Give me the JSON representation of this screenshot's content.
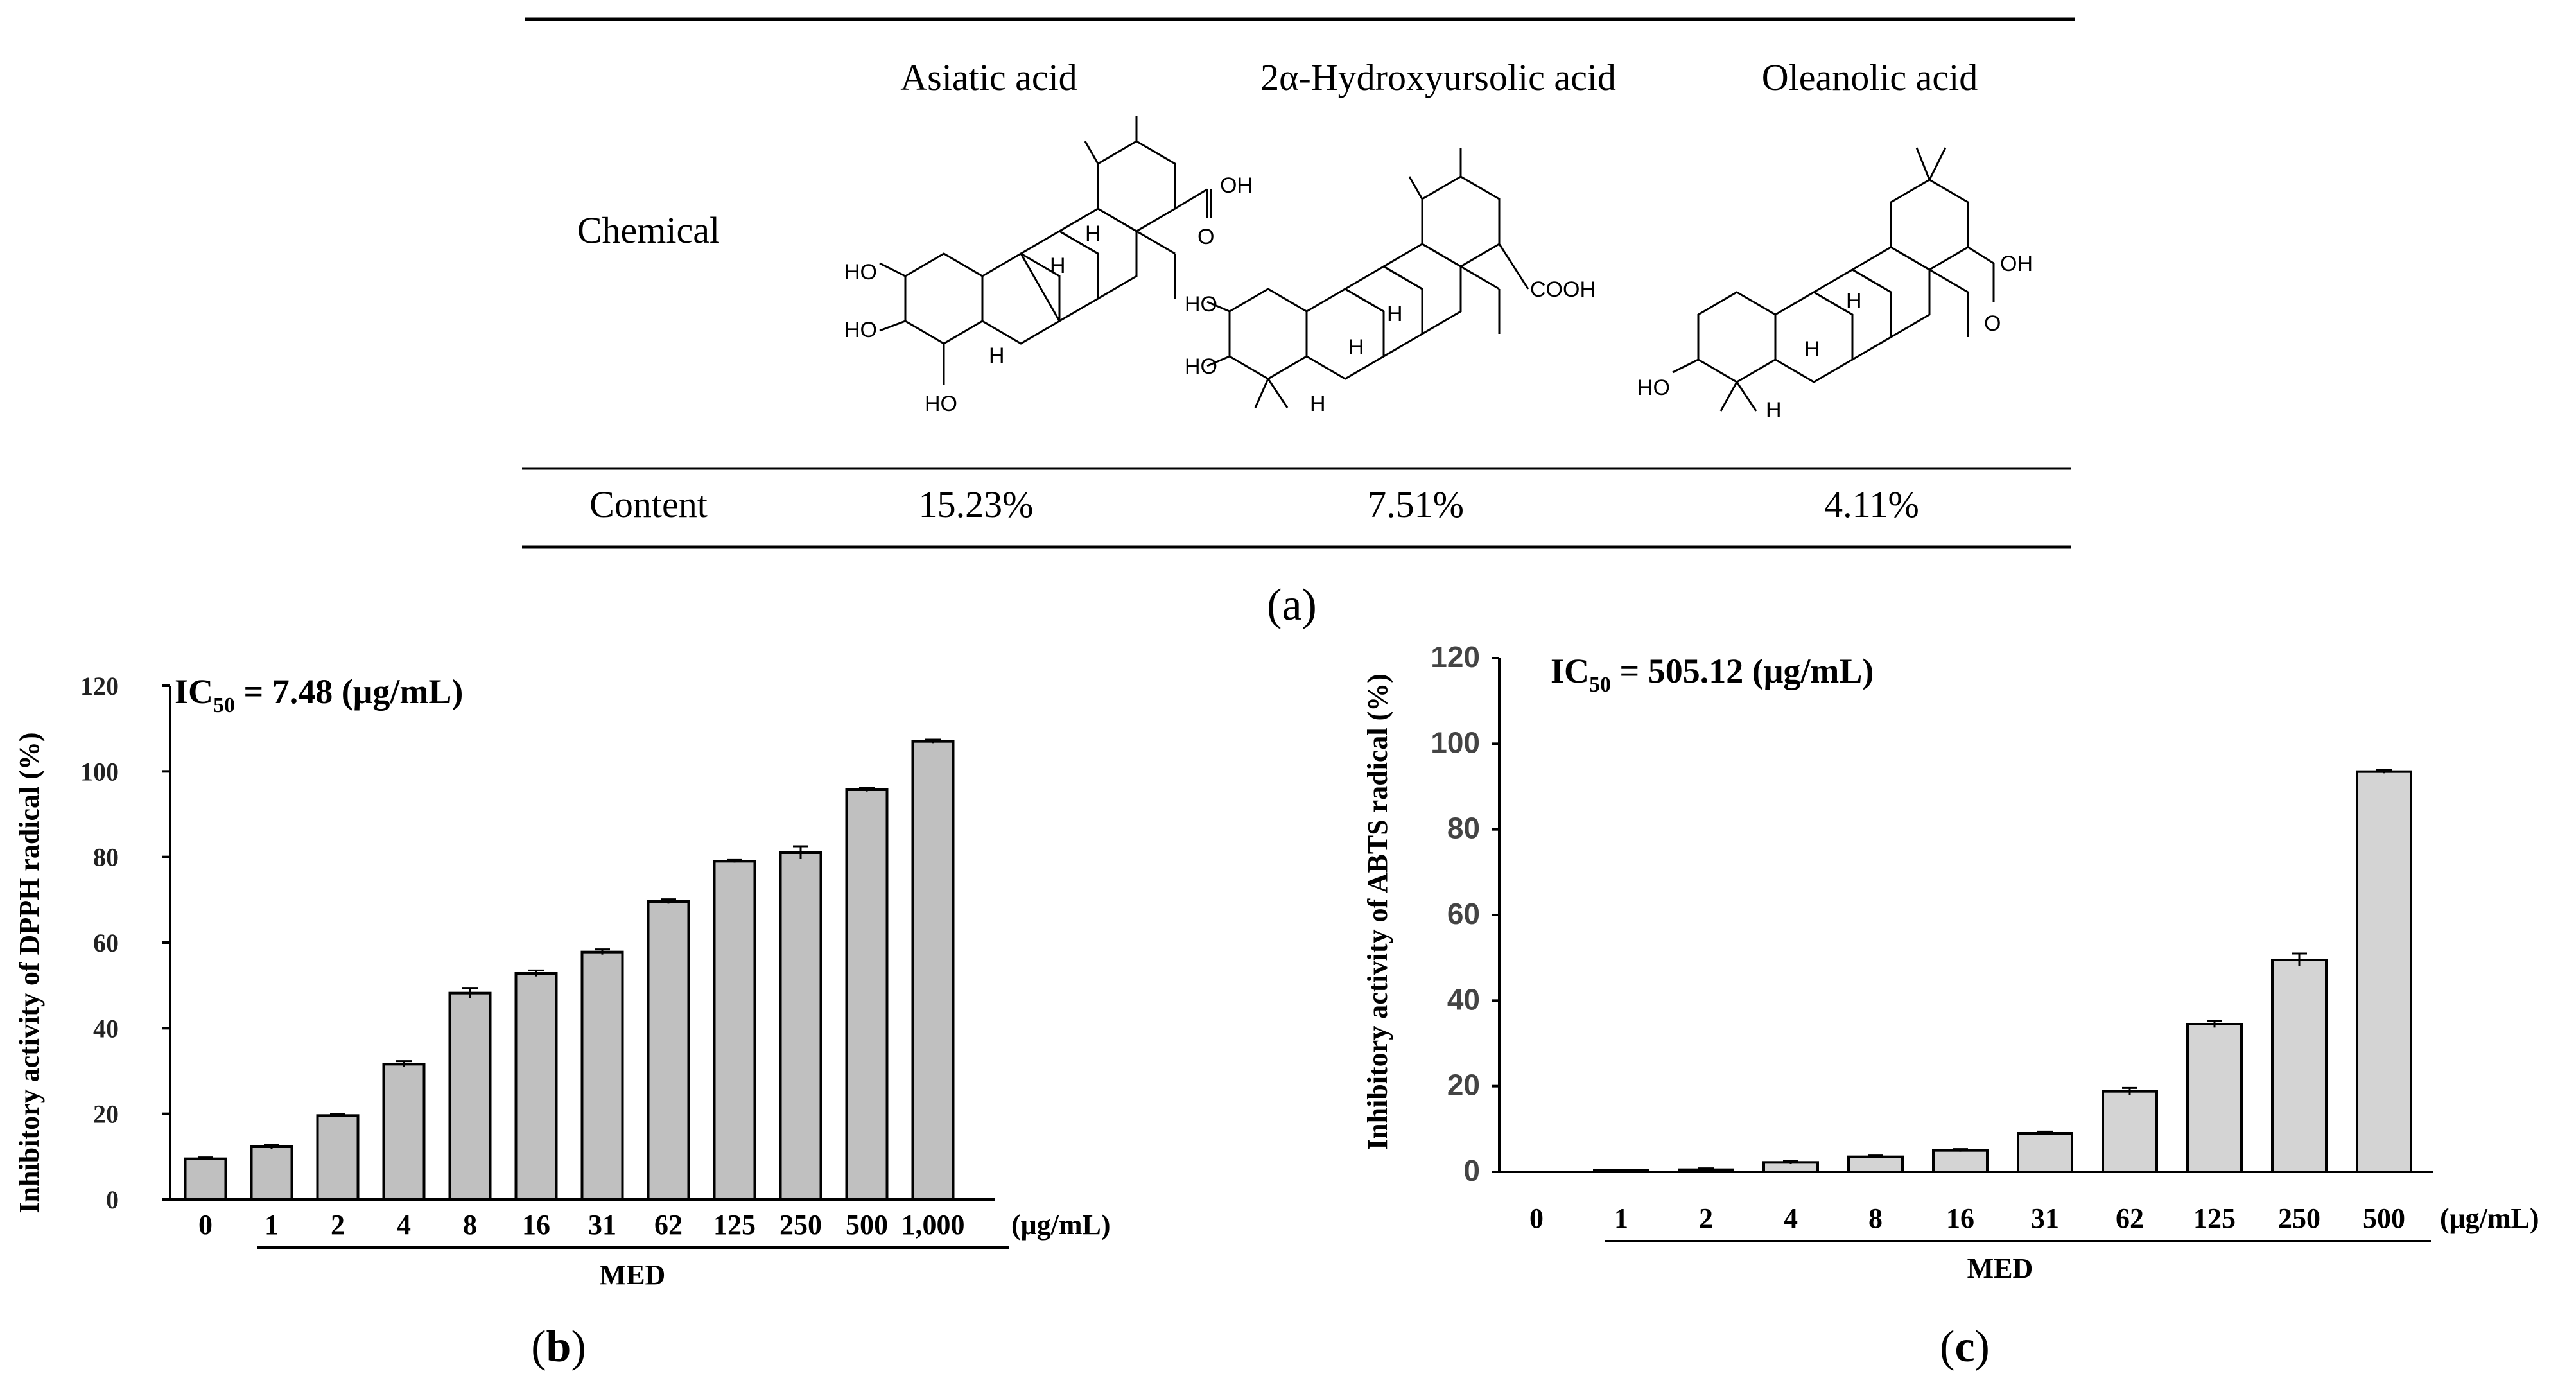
{
  "table": {
    "row_labels": {
      "chemical": "Chemical",
      "content": "Content"
    },
    "compounds": [
      {
        "name": "Asiatic acid",
        "content": "15.23%"
      },
      {
        "name": "2α-Hydroxyursolic acid",
        "content": "7.51%"
      },
      {
        "name": "Oleanolic acid",
        "content": "4.11%"
      }
    ],
    "panel_label": "(a)"
  },
  "chart_data": [
    {
      "type": "bar",
      "panel_label": "(b)",
      "annotation": {
        "prefix": "IC",
        "subscript": "50",
        "suffix": " = 7.48 (μg/mL)"
      },
      "ylabel": "Inhibitory activity of DPPH radical (%)",
      "xlabel": "MED",
      "x_unit": "(μg/mL)",
      "categories": [
        "0",
        "1",
        "2",
        "4",
        "8",
        "16",
        "31",
        "62",
        "125",
        "250",
        "500",
        "1,000"
      ],
      "values": [
        9.5,
        12.3,
        19.6,
        31.6,
        48.2,
        52.8,
        57.8,
        69.6,
        79.0,
        81.0,
        95.7,
        107.0
      ],
      "errors": [
        0.3,
        0.5,
        0.4,
        0.7,
        1.2,
        0.7,
        0.6,
        0.5,
        0.3,
        1.5,
        0.4,
        0.4
      ],
      "ylim": [
        0,
        120
      ],
      "yticks": [
        0,
        20,
        40,
        60,
        80,
        100,
        120
      ],
      "grid": false,
      "bar_color": "#c0c0c0"
    },
    {
      "type": "bar",
      "panel_label": "(c)",
      "annotation": {
        "prefix": "IC",
        "subscript": "50",
        "suffix": " = 505.12 (μg/mL)"
      },
      "ylabel": "Inhibitory  activity of ABTS radical (%)",
      "xlabel": "MED",
      "x_unit": "(μg/mL)",
      "categories": [
        "0",
        "1",
        "2",
        "4",
        "8",
        "16",
        "31",
        "62",
        "125",
        "250",
        "500"
      ],
      "values": [
        0,
        0.3,
        0.5,
        2.2,
        3.5,
        5.0,
        9.0,
        18.8,
        34.5,
        49.5,
        93.5
      ],
      "errors": [
        0,
        0.2,
        0.3,
        0.4,
        0.3,
        0.3,
        0.4,
        0.8,
        0.8,
        1.5,
        0.4
      ],
      "ylim": [
        0,
        120
      ],
      "yticks": [
        0,
        20,
        40,
        60,
        80,
        100,
        120
      ],
      "grid": false,
      "bar_color": "#d4d4d4"
    }
  ]
}
